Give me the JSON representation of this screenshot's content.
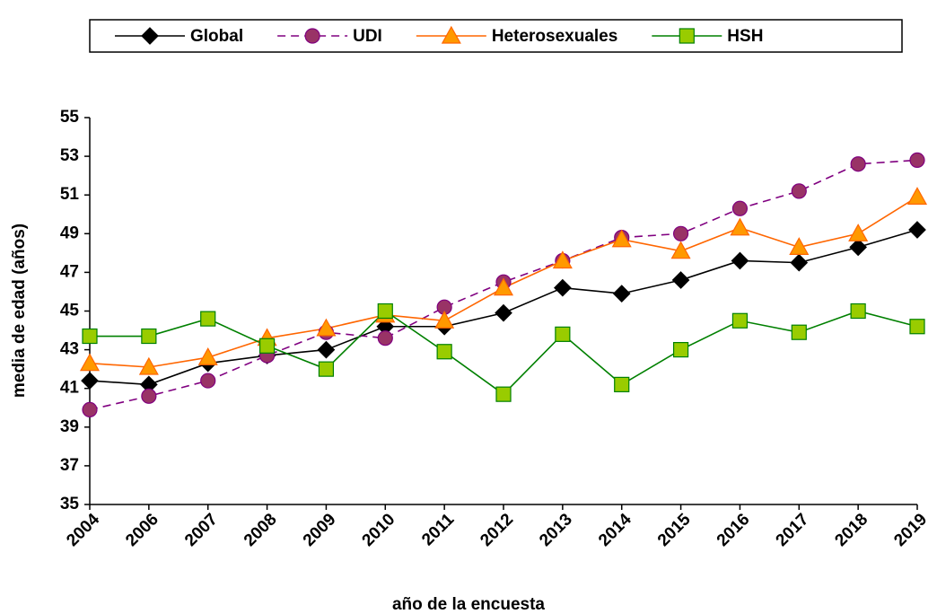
{
  "chart_data": {
    "type": "line",
    "x_label": "año de la encuesta",
    "y_label": "media de edad (años)",
    "categories": [
      "2004",
      "2006",
      "2007",
      "2008",
      "2009",
      "2010",
      "2011",
      "2012",
      "2013",
      "2014",
      "2015",
      "2016",
      "2017",
      "2018",
      "2019"
    ],
    "ylim": [
      35,
      55
    ],
    "yticks": [
      35,
      37,
      39,
      41,
      43,
      45,
      47,
      49,
      51,
      53,
      55
    ],
    "grid": false,
    "legend": "top",
    "series": [
      {
        "name": "Global",
        "color": "#000000",
        "marker": "diamond",
        "marker_fill": "#000000",
        "dashed": false,
        "values": [
          41.4,
          41.2,
          42.3,
          42.7,
          43.0,
          44.2,
          44.2,
          44.9,
          46.2,
          45.9,
          46.6,
          47.6,
          47.5,
          48.3,
          49.2
        ]
      },
      {
        "name": "UDI",
        "color": "#800080",
        "marker": "circle",
        "marker_fill": "#993366",
        "dashed": true,
        "values": [
          39.9,
          40.6,
          41.4,
          42.7,
          43.9,
          43.6,
          45.2,
          46.5,
          47.6,
          48.8,
          49.0,
          50.3,
          51.2,
          52.6,
          52.8
        ]
      },
      {
        "name": "Heterosexuales",
        "color": "#ff6600",
        "marker": "triangle",
        "marker_fill": "#ff9900",
        "dashed": false,
        "values": [
          42.3,
          42.1,
          42.6,
          43.6,
          44.1,
          44.8,
          44.5,
          46.2,
          47.6,
          48.7,
          48.1,
          49.3,
          48.3,
          49.0,
          50.9
        ]
      },
      {
        "name": "HSH",
        "color": "#008000",
        "marker": "square",
        "marker_fill": "#99cc00",
        "dashed": false,
        "values": [
          43.7,
          43.7,
          44.6,
          43.2,
          42.0,
          45.0,
          42.9,
          40.7,
          43.8,
          41.2,
          43.0,
          44.5,
          43.9,
          45.0,
          44.2
        ]
      }
    ]
  }
}
